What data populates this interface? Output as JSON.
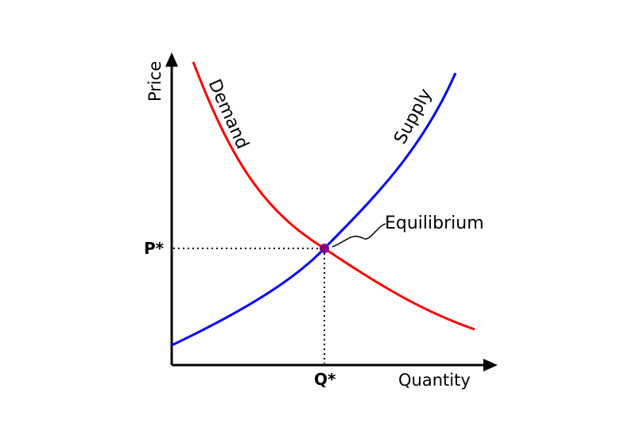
{
  "axes": {
    "y_label": "Price",
    "x_label": "Quantity",
    "p_star": "P*",
    "q_star": "Q*"
  },
  "curves": {
    "demand": {
      "label": "Demand",
      "color": "#ff0000"
    },
    "supply": {
      "label": "Supply",
      "color": "#0000ff"
    }
  },
  "equilibrium": {
    "label": "Equilibrium",
    "color": "#800080"
  }
}
